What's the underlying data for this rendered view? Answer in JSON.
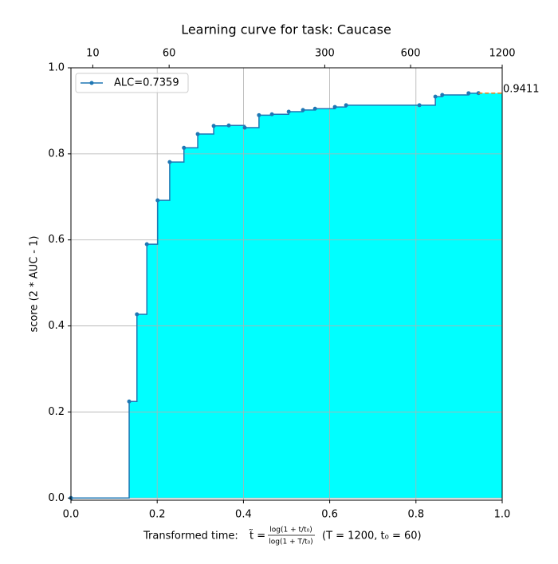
{
  "chart_data": {
    "type": "step",
    "title": "Learning curve for task: Caucase",
    "ylabel": "score (2 * AUC - 1)",
    "xlabel": {
      "prefix": "Transformed time:",
      "var": "t̃ =",
      "numerator": "log(1 + t/t₀)",
      "denominator": "log(1 + T/t₀)",
      "tail": "(T = 1200,  t₀ = 60)"
    },
    "parameters": {
      "T": 1200,
      "t0": 60
    },
    "xlim": [
      0,
      1
    ],
    "ylim": [
      -0.005,
      1.0
    ],
    "xticks": [
      {
        "value": 0,
        "label": "0.0"
      },
      0.2,
      0.4,
      0.6,
      0.8,
      {
        "value": 1,
        "label": "1.0"
      }
    ],
    "yticks": [
      {
        "value": 0,
        "label": "0.0"
      },
      0.2,
      0.4,
      0.6,
      0.8,
      {
        "value": 1,
        "label": "1.0"
      }
    ],
    "x2ticks": [
      10,
      60,
      300,
      600,
      1200
    ],
    "grid": true,
    "legend": "upper left",
    "fill_color": "#00ffff",
    "series": [
      {
        "name": "ALC=0.7359",
        "color": "#1f77b4",
        "x": [
          0,
          0.135,
          0.153,
          0.176,
          0.201,
          0.229,
          0.262,
          0.294,
          0.331,
          0.366,
          0.403,
          0.436,
          0.466,
          0.505,
          0.538,
          0.566,
          0.612,
          0.638,
          0.808,
          0.845,
          0.861,
          0.922,
          0.945
        ],
        "values": [
          0,
          0.2245,
          0.427,
          0.59,
          0.692,
          0.781,
          0.814,
          0.846,
          0.865,
          0.866,
          0.861,
          0.89,
          0.892,
          0.898,
          0.902,
          0.905,
          0.909,
          0.913,
          0.913,
          0.933,
          0.937,
          0.941,
          0.9411
        ]
      }
    ],
    "final_score": 0.9411,
    "final_color": "#ff7f0e"
  }
}
